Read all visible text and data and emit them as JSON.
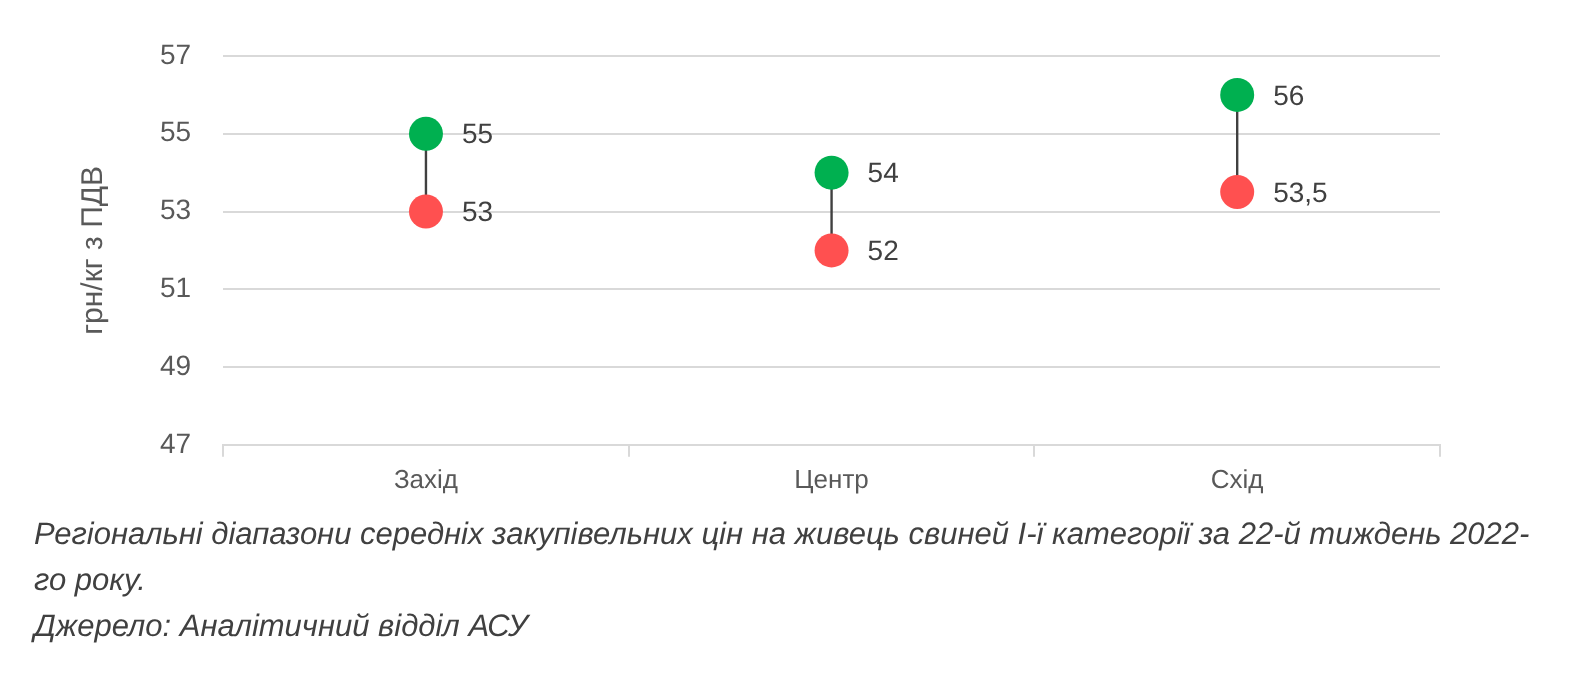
{
  "chart_data": {
    "type": "scatter",
    "ylabel": "грн/кг з ПДВ",
    "categories": [
      "Захід",
      "Центр",
      "Схід"
    ],
    "series": [
      {
        "color": "#00b050",
        "values": [
          55,
          54,
          56
        ],
        "value_labels": [
          "55",
          "54",
          "56"
        ]
      },
      {
        "color": "#ff5050",
        "values": [
          53,
          52,
          53.5
        ],
        "value_labels": [
          "53",
          "52",
          "53,5"
        ]
      }
    ],
    "ylim": [
      47,
      57
    ],
    "yticks": [
      47,
      49,
      51,
      53,
      55,
      57
    ],
    "grid": "y",
    "legend": false,
    "marker": "circle",
    "annotations": [
      "Регіональні діапазони середніх закупівельних цін на живець свиней І-ї категорії за 22-й тиждень 2022-го року.",
      "Джерело: Аналітичний відділ АСУ"
    ]
  }
}
